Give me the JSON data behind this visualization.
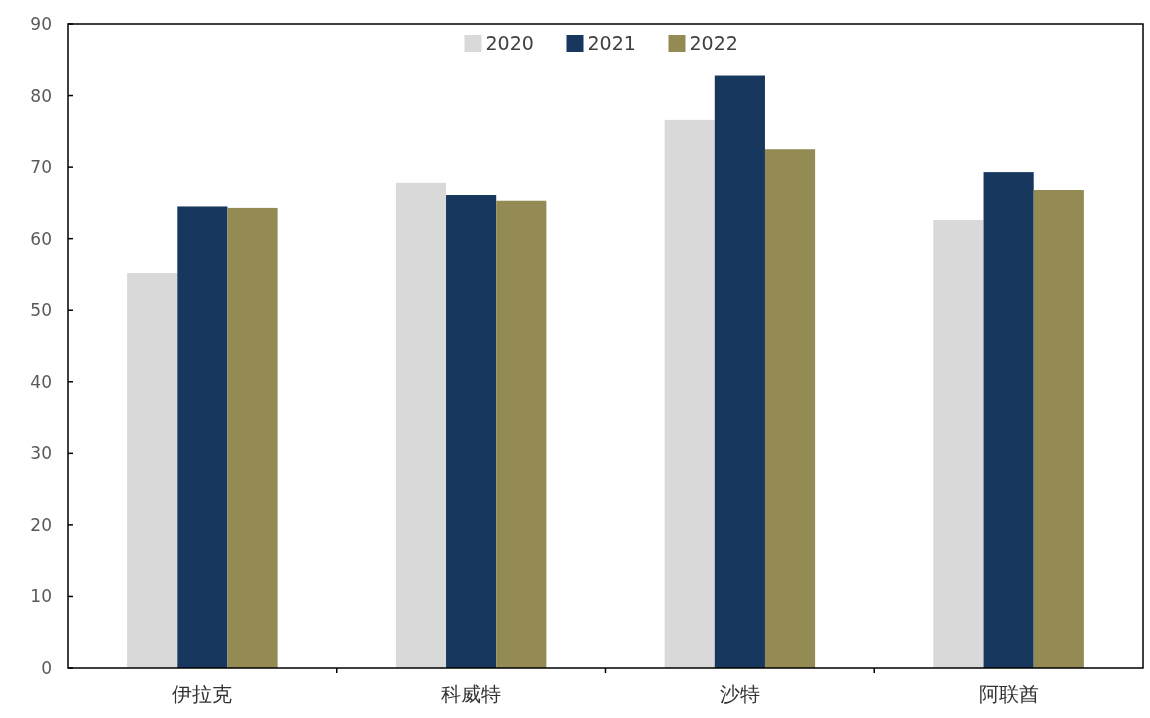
{
  "chart_data": {
    "type": "bar",
    "categories": [
      "伊拉克",
      "科威特",
      "沙特",
      "阿联酋"
    ],
    "series": [
      {
        "name": "2020",
        "color": "#d9d9d9",
        "values": [
          55.2,
          67.8,
          76.6,
          62.6
        ]
      },
      {
        "name": "2021",
        "color": "#17375e",
        "values": [
          64.5,
          66.1,
          82.8,
          69.3
        ]
      },
      {
        "name": "2022",
        "color": "#948a54",
        "values": [
          64.3,
          65.3,
          72.5,
          66.8
        ]
      }
    ],
    "ylim": [
      0,
      90
    ],
    "yticks": [
      0,
      10,
      20,
      30,
      40,
      50,
      60,
      70,
      80,
      90
    ],
    "legend": "top"
  }
}
